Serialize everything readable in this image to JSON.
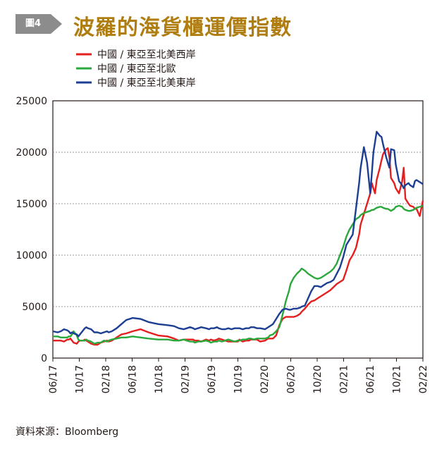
{
  "figure": {
    "badge": "圖4",
    "title": "波羅的海貨櫃運價指數",
    "source": "資料來源：Bloomberg"
  },
  "chart_data": {
    "type": "line",
    "title": "波羅的海貨櫃運價指數",
    "ylim": [
      0,
      25000
    ],
    "yticks": [
      0,
      5000,
      10000,
      15000,
      20000,
      25000
    ],
    "xticks": [
      "06/17",
      "10/17",
      "02/18",
      "06/18",
      "10/18",
      "02/19",
      "06/19",
      "10/19",
      "02/20",
      "06/20",
      "10/20",
      "02/21",
      "06/21",
      "10/21",
      "02/22"
    ],
    "grid": "horizontal dashed",
    "legend": "top-left",
    "x_start": "06/17",
    "x_end": "02/22",
    "series": [
      {
        "name": "中國 / 東亞至北美西岸",
        "color": "#e41f1f",
        "x": [
          0,
          3,
          5,
          7,
          9,
          10,
          11,
          12,
          13,
          15,
          16,
          17,
          19,
          20,
          21,
          22,
          24,
          26,
          28,
          30,
          32,
          34,
          35,
          37,
          40,
          43,
          46,
          50,
          55,
          60,
          66,
          72,
          76,
          79,
          82,
          84,
          86,
          88,
          89,
          91,
          93,
          96,
          98,
          99,
          101,
          103,
          104,
          106,
          108,
          110,
          112,
          114,
          116,
          117,
          119,
          121,
          123,
          124,
          126,
          128,
          130,
          133,
          135,
          136,
          138,
          140,
          142,
          144,
          146,
          148,
          149,
          151,
          153,
          155,
          156,
          158,
          160,
          162,
          164,
          166,
          168,
          170,
          172,
          174,
          176,
          178,
          180,
          182,
          184,
          186,
          188,
          190,
          192,
          193,
          195,
          197,
          199,
          200,
          201,
          202,
          203,
          205,
          206,
          207,
          209,
          210,
          211,
          212,
          214,
          215,
          217,
          219,
          220,
          221,
          223,
          224,
          226,
          227,
          228,
          230,
          232
        ],
        "values": [
          1700,
          1700,
          1700,
          1600,
          1800,
          1800,
          1900,
          1700,
          1500,
          1400,
          1600,
          1700,
          1700,
          1800,
          1700,
          1600,
          1400,
          1300,
          1300,
          1500,
          1600,
          1700,
          1600,
          1700,
          2000,
          2300,
          2400,
          2600,
          2800,
          2500,
          2200,
          2100,
          1900,
          1700,
          1800,
          1800,
          1800,
          1800,
          1700,
          1700,
          1600,
          1800,
          1700,
          1800,
          1700,
          1800,
          1900,
          1800,
          1700,
          1600,
          1600,
          1600,
          1600,
          1800,
          1600,
          1700,
          1700,
          1800,
          1800,
          1800,
          1600,
          1700,
          1900,
          1900,
          1900,
          2200,
          3200,
          3800,
          4000,
          4000,
          4000,
          4000,
          4100,
          4300,
          4500,
          4800,
          5200,
          5500,
          5600,
          5800,
          6000,
          6200,
          6400,
          6600,
          6900,
          7200,
          7400,
          7600,
          8500,
          9500,
          10000,
          10700,
          12000,
          13000,
          14000,
          15000,
          16000,
          17000,
          16500,
          16000,
          17300,
          18500,
          19200,
          19800,
          20300,
          20400,
          19500,
          17500,
          17000,
          16500,
          16000,
          17200,
          18500,
          15500,
          15000,
          14800,
          14700,
          14500,
          14500,
          13800,
          15300
        ]
      },
      {
        "name": "中國 / 東亞至北歐",
        "color": "#2ba83c",
        "x": [
          0,
          3,
          5,
          7,
          9,
          10,
          11,
          12,
          13,
          15,
          16,
          17,
          19,
          20,
          21,
          22,
          24,
          26,
          28,
          30,
          32,
          34,
          35,
          37,
          40,
          43,
          46,
          50,
          55,
          60,
          66,
          72,
          76,
          79,
          82,
          84,
          86,
          88,
          89,
          91,
          93,
          96,
          98,
          99,
          101,
          103,
          104,
          106,
          108,
          110,
          112,
          114,
          116,
          117,
          119,
          121,
          123,
          124,
          126,
          128,
          130,
          133,
          135,
          136,
          138,
          140,
          142,
          144,
          146,
          148,
          149,
          151,
          153,
          155,
          156,
          158,
          160,
          162,
          164,
          166,
          168,
          170,
          172,
          174,
          176,
          178,
          180,
          182,
          184,
          186,
          188,
          190,
          192,
          193,
          195,
          197,
          199,
          200,
          201,
          202,
          203,
          205,
          206,
          207,
          209,
          210,
          211,
          212,
          214,
          215,
          217,
          219,
          220,
          221,
          223,
          224,
          226,
          227,
          228,
          230,
          232
        ],
        "values": [
          2100,
          2100,
          2000,
          2000,
          2000,
          2100,
          2100,
          2300,
          2600,
          2200,
          1800,
          1700,
          1700,
          1700,
          1800,
          1700,
          1600,
          1400,
          1500,
          1500,
          1700,
          1600,
          1700,
          1800,
          1900,
          2000,
          2000,
          2100,
          2000,
          1900,
          1800,
          1800,
          1700,
          1700,
          1800,
          1700,
          1600,
          1600,
          1500,
          1600,
          1600,
          1700,
          1600,
          1500,
          1600,
          1600,
          1700,
          1600,
          1700,
          1800,
          1700,
          1600,
          1700,
          1700,
          1800,
          1800,
          1900,
          1900,
          1800,
          1900,
          1900,
          1900,
          2000,
          2200,
          2300,
          2600,
          3000,
          4200,
          5500,
          6500,
          7200,
          7800,
          8200,
          8500,
          8700,
          8500,
          8200,
          8000,
          7800,
          7700,
          7800,
          8000,
          8200,
          8400,
          8700,
          9200,
          10000,
          10800,
          11800,
          12500,
          13000,
          13500,
          13700,
          13900,
          14100,
          14200,
          14300,
          14400,
          14400,
          14500,
          14600,
          14700,
          14700,
          14600,
          14500,
          14500,
          14400,
          14300,
          14500,
          14700,
          14800,
          14700,
          14500,
          14400,
          14300,
          14300,
          14400,
          14500,
          14600,
          14700,
          14800
        ]
      },
      {
        "name": "中國 / 東亞至北美東岸",
        "color": "#1c3e93",
        "x": [
          0,
          3,
          5,
          7,
          9,
          10,
          11,
          12,
          13,
          15,
          16,
          17,
          19,
          20,
          21,
          22,
          24,
          26,
          28,
          30,
          32,
          34,
          35,
          37,
          40,
          43,
          46,
          50,
          55,
          60,
          66,
          72,
          76,
          79,
          82,
          84,
          86,
          88,
          89,
          91,
          93,
          96,
          98,
          99,
          101,
          103,
          104,
          106,
          108,
          110,
          112,
          114,
          116,
          117,
          119,
          121,
          123,
          124,
          126,
          128,
          130,
          133,
          135,
          136,
          138,
          140,
          142,
          144,
          146,
          148,
          149,
          151,
          153,
          155,
          156,
          158,
          160,
          162,
          164,
          166,
          168,
          170,
          172,
          174,
          176,
          178,
          180,
          182,
          184,
          186,
          188,
          190,
          192,
          193,
          195,
          197,
          199,
          200,
          201,
          202,
          203,
          205,
          206,
          207,
          209,
          210,
          211,
          212,
          214,
          215,
          217,
          219,
          220,
          221,
          223,
          224,
          226,
          227,
          228,
          230,
          232
        ],
        "values": [
          2600,
          2500,
          2600,
          2800,
          2700,
          2600,
          2400,
          2500,
          2400,
          2300,
          2100,
          2300,
          2700,
          2900,
          3000,
          2900,
          2800,
          2500,
          2500,
          2400,
          2500,
          2600,
          2500,
          2600,
          2900,
          3300,
          3700,
          3900,
          3800,
          3500,
          3300,
          3200,
          3100,
          2900,
          2800,
          2900,
          3000,
          2900,
          2800,
          2900,
          3000,
          2900,
          2800,
          2900,
          2900,
          3000,
          2900,
          2800,
          2800,
          2900,
          2800,
          2900,
          2900,
          2900,
          2800,
          2900,
          2900,
          3000,
          3000,
          2900,
          2900,
          2800,
          3000,
          3100,
          3300,
          3800,
          4300,
          4700,
          4800,
          4700,
          4700,
          4800,
          4800,
          4900,
          5000,
          5100,
          5800,
          6500,
          7000,
          7000,
          6900,
          7100,
          7300,
          7400,
          7600,
          8200,
          8800,
          9800,
          11000,
          11500,
          12000,
          14500,
          17000,
          18500,
          20500,
          19000,
          16000,
          18000,
          20000,
          21000,
          22000,
          21600,
          21500,
          20800,
          19500,
          19000,
          18500,
          20300,
          20200,
          18800,
          17200,
          16800,
          16500,
          16800,
          17000,
          16800,
          16600,
          17200,
          17300,
          17100,
          16900
        ]
      }
    ]
  }
}
